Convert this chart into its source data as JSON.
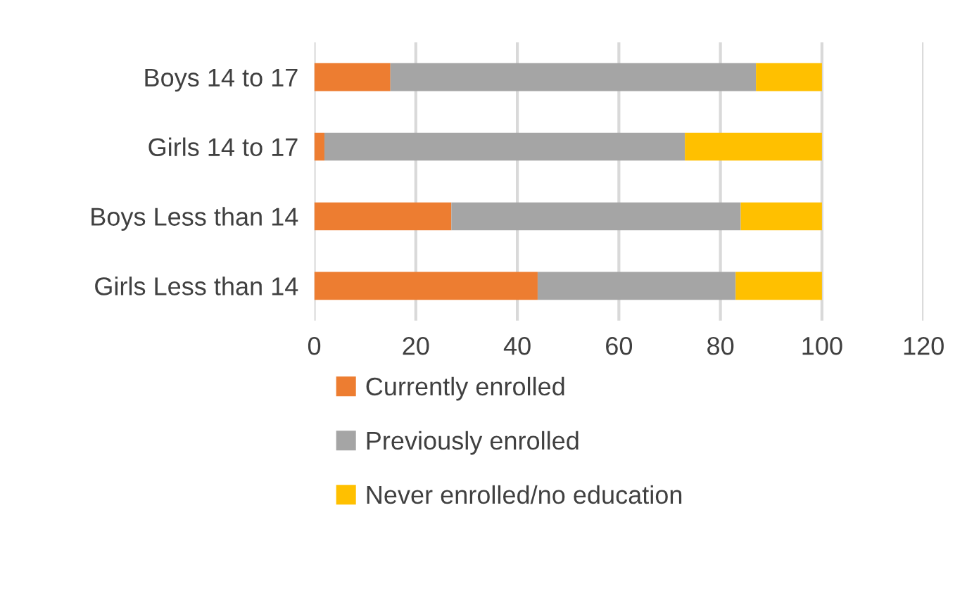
{
  "chart_data": {
    "type": "bar",
    "orientation": "horizontal",
    "stacked": true,
    "categories": [
      "Boys 14 to 17",
      "Girls 14 to 17",
      "Boys Less than 14",
      "Girls Less than 14"
    ],
    "series": [
      {
        "name": "Currently enrolled",
        "color": "#ed7d31",
        "values": [
          15,
          2,
          27,
          44
        ]
      },
      {
        "name": "Previously enrolled",
        "color": "#a5a5a5",
        "values": [
          72,
          71,
          57,
          39
        ]
      },
      {
        "name": "Never enrolled/no education",
        "color": "#ffc000",
        "values": [
          13,
          27,
          16,
          17
        ]
      }
    ],
    "xlim": [
      0,
      120
    ],
    "xticks": [
      0,
      20,
      40,
      60,
      80,
      100,
      120
    ],
    "grid": "x",
    "legend": "bottom"
  }
}
